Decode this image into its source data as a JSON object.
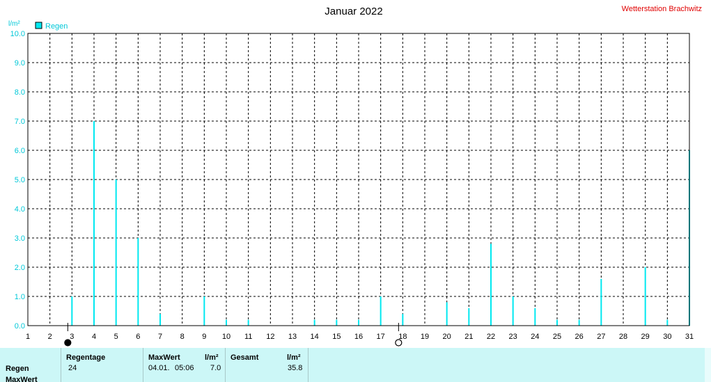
{
  "chart_data": {
    "type": "bar",
    "title": "Januar 2022",
    "station": "Wetterstation Brachwitz",
    "ylabel": "l/m²",
    "ylim": [
      0,
      10
    ],
    "yticks": [
      "0.0",
      "1.0",
      "2.0",
      "3.0",
      "4.0",
      "5.0",
      "6.0",
      "7.0",
      "8.0",
      "9.0",
      "10.0"
    ],
    "categories": [
      "1",
      "2",
      "3",
      "4",
      "5",
      "6",
      "7",
      "8",
      "9",
      "10",
      "11",
      "12",
      "13",
      "14",
      "15",
      "16",
      "17",
      "18",
      "19",
      "20",
      "21",
      "22",
      "23",
      "24",
      "25",
      "26",
      "27",
      "28",
      "29",
      "30",
      "31"
    ],
    "series": [
      {
        "name": "Regen",
        "color": "#00e8f0",
        "values": [
          0,
          0,
          1.0,
          7.0,
          5.0,
          3.0,
          0.4,
          0,
          1.0,
          0.2,
          0.2,
          0,
          0,
          0.2,
          0.2,
          0.2,
          1.0,
          0.4,
          0,
          0.8,
          0.6,
          2.8,
          1.0,
          0.6,
          0.2,
          0.2,
          1.6,
          0,
          2.0,
          0.2,
          6.0
        ]
      }
    ],
    "grid": true,
    "legend": "top-left",
    "moon_phases": [
      {
        "day": 3,
        "phase": "new-moon"
      },
      {
        "day": 18,
        "phase": "full-moon"
      }
    ]
  },
  "stats": {
    "row_labels": [
      "Regen",
      "MaxWert"
    ],
    "regentage_header": "Regentage",
    "regentage_value": "24",
    "maxwert_header": "MaxWert",
    "maxwert_unit": "l/m²",
    "maxwert_date": "04.01.",
    "maxwert_time": "05:06",
    "maxwert_value": "7.0",
    "gesamt_header": "Gesamt",
    "gesamt_unit": "l/m²",
    "gesamt_value": "35.8"
  }
}
